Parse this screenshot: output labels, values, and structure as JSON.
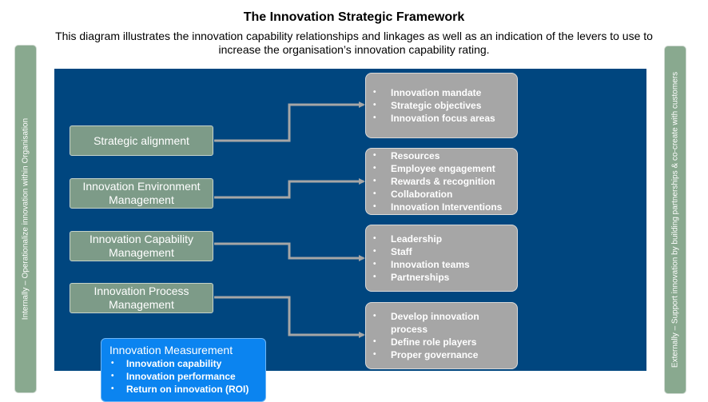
{
  "title": "The Innovation Strategic Framework",
  "subtitle": "This diagram illustrates the innovation capability relationships and linkages as well as an indication of the levers to use to increase the organisation’s innovation capability rating.",
  "left_bar_text": "Internally – Operationalize innovation within Organisation",
  "right_bar_text": "Externally – Support innovation by building partnerships & co-create with customers",
  "left_boxes": [
    {
      "label": "Strategic alignment"
    },
    {
      "label": "Innovation Environment Management"
    },
    {
      "label": "Innovation Capability Management"
    },
    {
      "label": "Innovation Process Management"
    }
  ],
  "right_boxes": [
    {
      "items": [
        "Innovation mandate",
        "Strategic objectives",
        "Innovation focus areas"
      ]
    },
    {
      "items": [
        "Resources",
        "Employee engagement",
        "Rewards & recognition",
        "Collaboration",
        "Innovation Interventions"
      ]
    },
    {
      "items": [
        "Leadership",
        "Staff",
        "Innovation teams",
        "Partnerships"
      ]
    },
    {
      "items": [
        "Develop innovation process",
        "Define role players",
        "Proper governance"
      ]
    }
  ],
  "measurement": {
    "title": "Innovation Measurement",
    "items": [
      "Innovation capability",
      "Innovation performance",
      "Return on innovation (ROI)"
    ]
  },
  "colors": {
    "panel": "#00467f",
    "left_box": "#7d9b88",
    "right_box": "#a6a6a6",
    "side_bar": "#89a98f",
    "measurement": "#0b84f0",
    "connector": "#a6a6a6"
  }
}
